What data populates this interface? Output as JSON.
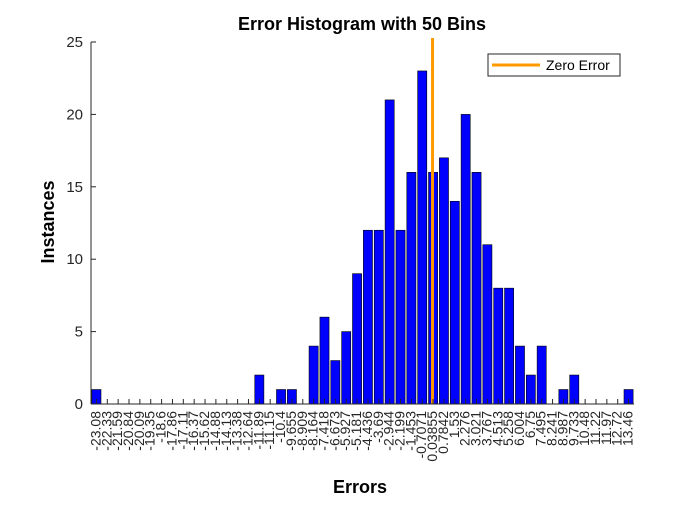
{
  "chart_data": {
    "type": "bar",
    "title": "Error Histogram with 50 Bins",
    "xlabel": "Errors",
    "ylabel": "Instances",
    "ylim": [
      0,
      25
    ],
    "yticks": [
      0,
      5,
      10,
      15,
      20,
      25
    ],
    "categories": [
      "-23.08",
      "-22.33",
      "-21.59",
      "-20.84",
      "-20.09",
      "-19.35",
      "-18.6",
      "-17.86",
      "-17.11",
      "-16.37",
      "-15.62",
      "-14.88",
      "-14.13",
      "-13.38",
      "-12.64",
      "-11.89",
      "-11.15",
      "-10.4",
      "-9.655",
      "-8.909",
      "-8.164",
      "-7.418",
      "-6.673",
      "-5.927",
      "-5.181",
      "-4.436",
      "-3.69",
      "-2.944",
      "-2.199",
      "-1.453",
      "-0.7071",
      "0.03855",
      "0.7842",
      "1.53",
      "2.276",
      "3.021",
      "3.767",
      "4.513",
      "5.258",
      "6.004",
      "6.75",
      "7.495",
      "8.241",
      "8.987",
      "9.733",
      "10.48",
      "11.22",
      "11.97",
      "12.72",
      "13.46"
    ],
    "series": [
      {
        "color": "#0000FF",
        "values": [
          1,
          0,
          0,
          0,
          0,
          0,
          0,
          0,
          0,
          0,
          0,
          0,
          0,
          0,
          0,
          2,
          0,
          1,
          1,
          0,
          4,
          6,
          3,
          5,
          9,
          12,
          12,
          21,
          12,
          16,
          23,
          16,
          17,
          14,
          20,
          16,
          11,
          8,
          8,
          4,
          2,
          4,
          0,
          1,
          2,
          0,
          0,
          0,
          0,
          1
        ]
      }
    ],
    "reference_line": {
      "name": "Zero Error",
      "x": 0,
      "color": "#FF9900"
    },
    "legend": {
      "position": "top-right",
      "entries": [
        "Zero Error"
      ]
    },
    "grid": false
  }
}
